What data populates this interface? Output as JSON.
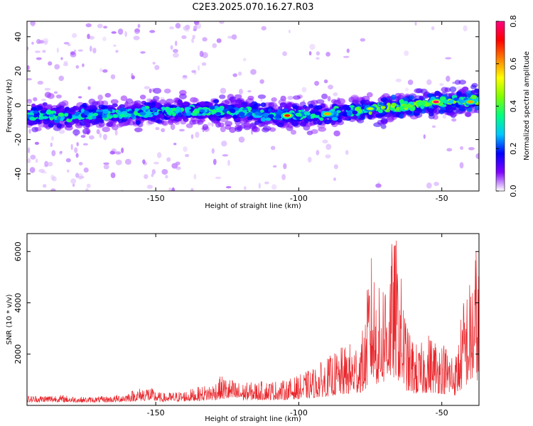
{
  "chart_data": [
    {
      "type": "heatmap",
      "title": "C2E3.2025.070.16.27.R03",
      "xlabel": "Height of straight line (km)",
      "ylabel": "Frequency (Hz)",
      "xlim": [
        -195,
        -37
      ],
      "ylim": [
        -50,
        49
      ],
      "x_ticks": [
        -150,
        -100,
        -50
      ],
      "y_ticks": [
        -40,
        -20,
        0,
        20,
        40
      ],
      "colorbar": {
        "label": "Normalized spectral amplitude",
        "range": [
          0.0,
          0.8
        ],
        "ticks": [
          "0.0",
          "0.2",
          "0.4",
          "0.6",
          "0.8"
        ],
        "colors": [
          "#ffffff",
          "#7f00ff",
          "#0000ff",
          "#00c8ff",
          "#00ff80",
          "#80ff00",
          "#ffff00",
          "#ff8000",
          "#ff0000",
          "#ff0080"
        ]
      },
      "ridge": {
        "x": [
          -195,
          -180,
          -165,
          -150,
          -135,
          -120,
          -105,
          -90,
          -75,
          -60,
          -50,
          -42,
          -37
        ],
        "freq_hz": [
          -6,
          -6,
          -5,
          -4,
          -3,
          -4,
          -6,
          -5,
          -2,
          0,
          2,
          3,
          3
        ]
      },
      "hotspots": [
        {
          "x": -52,
          "freq_hz": 2,
          "amplitude": 0.8
        },
        {
          "x": -104,
          "freq_hz": -6,
          "amplitude": 0.7
        },
        {
          "x": -90,
          "freq_hz": -5,
          "amplitude": 0.6
        },
        {
          "x": -40,
          "freq_hz": 2,
          "amplitude": 0.6
        },
        {
          "x": -75,
          "freq_hz": -2,
          "amplitude": 0.5
        }
      ]
    },
    {
      "type": "line",
      "xlabel": "Height of straight line (km)",
      "ylabel": "SNR (10 * v/v)",
      "xlim": [
        -195,
        -37
      ],
      "ylim": [
        0,
        6700
      ],
      "x_ticks": [
        -150,
        -100,
        -50
      ],
      "y_ticks": [
        2000,
        4000,
        6000
      ],
      "series": [
        {
          "color": "#e8262b",
          "x": [
            -195,
            -185,
            -175,
            -165,
            -160,
            -153,
            -148,
            -140,
            -130,
            -127,
            -120,
            -110,
            -105,
            -100,
            -95,
            -90,
            -85,
            -80,
            -77,
            -75,
            -72,
            -68,
            -66,
            -62,
            -58,
            -55,
            -50,
            -45,
            -42,
            -40,
            -38,
            -37
          ],
          "values": [
            300,
            350,
            250,
            300,
            450,
            700,
            400,
            500,
            800,
            1100,
            800,
            900,
            900,
            1100,
            1400,
            1800,
            2200,
            2500,
            3000,
            6100,
            4500,
            6200,
            6600,
            3000,
            2200,
            2800,
            2500,
            2000,
            4500,
            4900,
            6300,
            5500
          ]
        }
      ]
    }
  ]
}
